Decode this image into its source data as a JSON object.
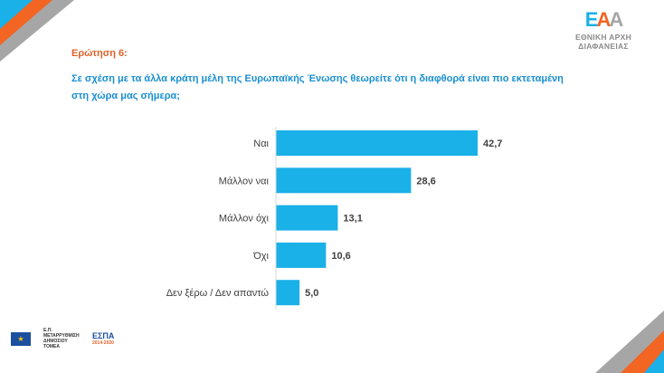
{
  "question": {
    "number": "Ερώτηση 6:",
    "text": "Σε σχέση με τα άλλα κράτη μέλη της Ευρωπαϊκής Ένωσης θεωρείτε ότι η διαφθορά είναι πιο εκτεταμένη στη χώρα μας σήμερα;"
  },
  "logo": {
    "mark": "ΕΑΑ",
    "name": "ΕΘΝΙΚΗ ΑΡΧΗ ΔΙΑΦΑΝΕΙΑΣ"
  },
  "footer": {
    "program": "Ε.Π. ΜΕΤΑΡΡΥΘΜΙΣΗ ΔΗΜΟΣΙΟΥ ΤΟΜΕΑ",
    "espa": "ΕΣΠΑ",
    "espa_years": "2014-2020"
  },
  "colors": {
    "bar": "#1ab0e8",
    "accent": "#e0622a",
    "gray": "#a6a6a6",
    "question": "#1a8fd0"
  },
  "chart_data": {
    "type": "bar",
    "orientation": "horizontal",
    "categories": [
      "Ναι",
      "Μάλλον ναι",
      "Μάλλον όχι",
      "Όχι",
      "Δεν ξέρω / Δεν απαντώ"
    ],
    "values": [
      42.7,
      28.6,
      13.1,
      10.6,
      5.0
    ],
    "value_labels": [
      "42,7",
      "28,6",
      "13,1",
      "10,6",
      "5,0"
    ],
    "xlim": [
      0,
      50
    ],
    "grid": false
  }
}
